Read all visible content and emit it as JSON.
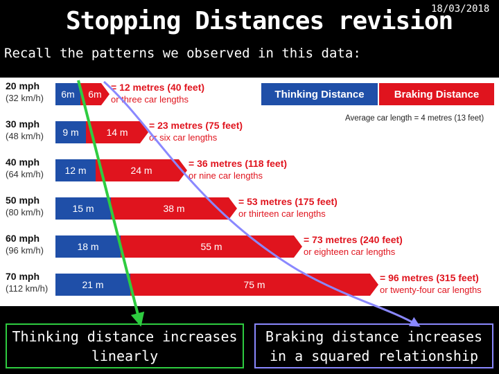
{
  "slide": {
    "title": "Stopping Distances revision",
    "date": "18/03/2018",
    "subtitle": "Recall the patterns we observed in this data:"
  },
  "legend": {
    "thinking": "Thinking Distance",
    "braking": "Braking Distance",
    "average_car": "Average car length = 4 metres (13 feet)"
  },
  "rows": [
    {
      "mph": "20 mph",
      "kmh": "(32 km/h)",
      "thinking": "6m",
      "braking": "6m",
      "total": "= 12 metres (40 feet)",
      "cars": "or three car lengths"
    },
    {
      "mph": "30 mph",
      "kmh": "(48 km/h)",
      "thinking": "9 m",
      "braking": "14 m",
      "total": "= 23 metres (75 feet)",
      "cars": "or six car lengths"
    },
    {
      "mph": "40 mph",
      "kmh": "(64 km/h)",
      "thinking": "12 m",
      "braking": "24 m",
      "total": "= 36 metres (118 feet)",
      "cars": "or nine car lengths"
    },
    {
      "mph": "50 mph",
      "kmh": "(80 km/h)",
      "thinking": "15 m",
      "braking": "38 m",
      "total": "= 53 metres (175 feet)",
      "cars": "or thirteen car lengths"
    },
    {
      "mph": "60 mph",
      "kmh": "(96 km/h)",
      "thinking": "18 m",
      "braking": "55 m",
      "total": "= 73 metres (240 feet)",
      "cars": "or eighteen car lengths"
    },
    {
      "mph": "70 mph",
      "kmh": "(112 km/h)",
      "thinking": "21 m",
      "braking": "75 m",
      "total": "= 96 metres (315 feet)",
      "cars": "or twenty-four car lengths"
    }
  ],
  "conclusions": {
    "thinking": "Thinking distance increases linearly",
    "braking": "Braking distance increases in a squared relationship"
  },
  "colors": {
    "thinking_bar": "#1f4fa8",
    "braking_bar": "#e0141e",
    "linear_line": "#2ecc40",
    "squared_curve": "#8a88ff"
  }
}
